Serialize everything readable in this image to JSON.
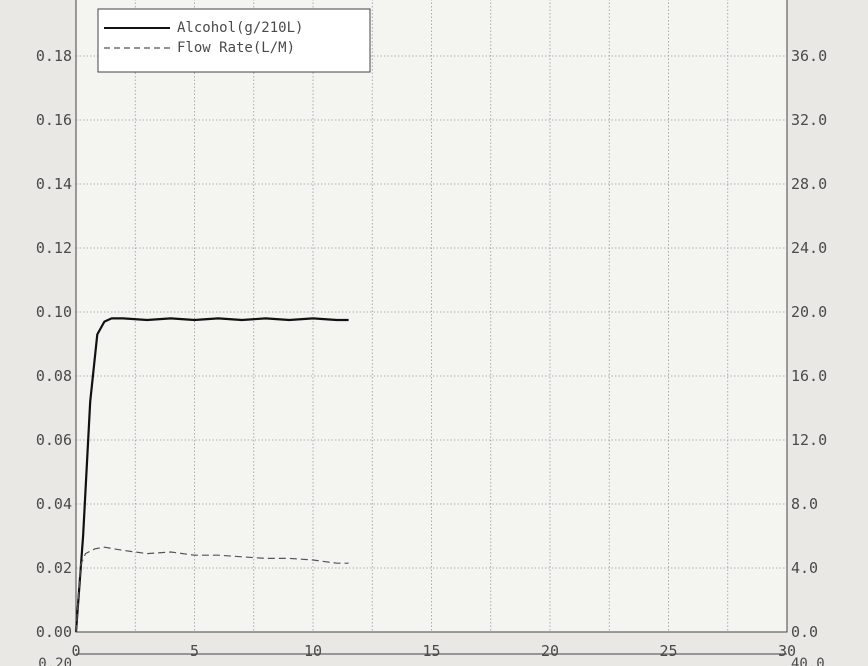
{
  "chart_data": {
    "type": "line",
    "title": "",
    "xlabel": "",
    "ylabel": "",
    "xlim": [
      0,
      30
    ],
    "x_ticks": [
      "0",
      "5",
      "10",
      "15",
      "20",
      "25",
      "30"
    ],
    "ylim_left": [
      0,
      0.2
    ],
    "y_ticks_left": [
      "0.00",
      "0.02",
      "0.04",
      "0.06",
      "0.08",
      "0.10",
      "0.12",
      "0.14",
      "0.16",
      "0.18",
      "0.20"
    ],
    "ylim_right": [
      0,
      40
    ],
    "y_ticks_right": [
      "0.0",
      "4.0",
      "8.0",
      "12.0",
      "16.0",
      "20.0",
      "24.0",
      "28.0",
      "32.0",
      "36.0",
      "40.0"
    ],
    "grid": true,
    "legend_position": "top-left",
    "series": [
      {
        "name": "Alcohol(g/210L)",
        "axis": "left",
        "style": "solid",
        "color": "#111111",
        "x": [
          0,
          0.3,
          0.6,
          0.9,
          1.2,
          1.5,
          2,
          3,
          4,
          5,
          6,
          7,
          8,
          9,
          10,
          11,
          11.5
        ],
        "y": [
          0,
          0.03,
          0.072,
          0.093,
          0.097,
          0.098,
          0.098,
          0.0975,
          0.098,
          0.0975,
          0.098,
          0.0975,
          0.098,
          0.0975,
          0.098,
          0.0975,
          0.0975
        ]
      },
      {
        "name": "Flow Rate(L/M)",
        "axis": "right",
        "style": "dashed",
        "color": "#555555",
        "x": [
          0,
          0.2,
          0.4,
          0.8,
          1.2,
          2,
          3,
          4,
          5,
          6,
          7,
          8,
          9,
          10,
          11,
          11.5
        ],
        "y": [
          0,
          4.2,
          4.9,
          5.2,
          5.3,
          5.1,
          4.9,
          5.0,
          4.8,
          4.8,
          4.7,
          4.6,
          4.6,
          4.5,
          4.3,
          4.3
        ]
      }
    ],
    "bottom_left_label": "0.20",
    "bottom_right_label": "40.0"
  }
}
